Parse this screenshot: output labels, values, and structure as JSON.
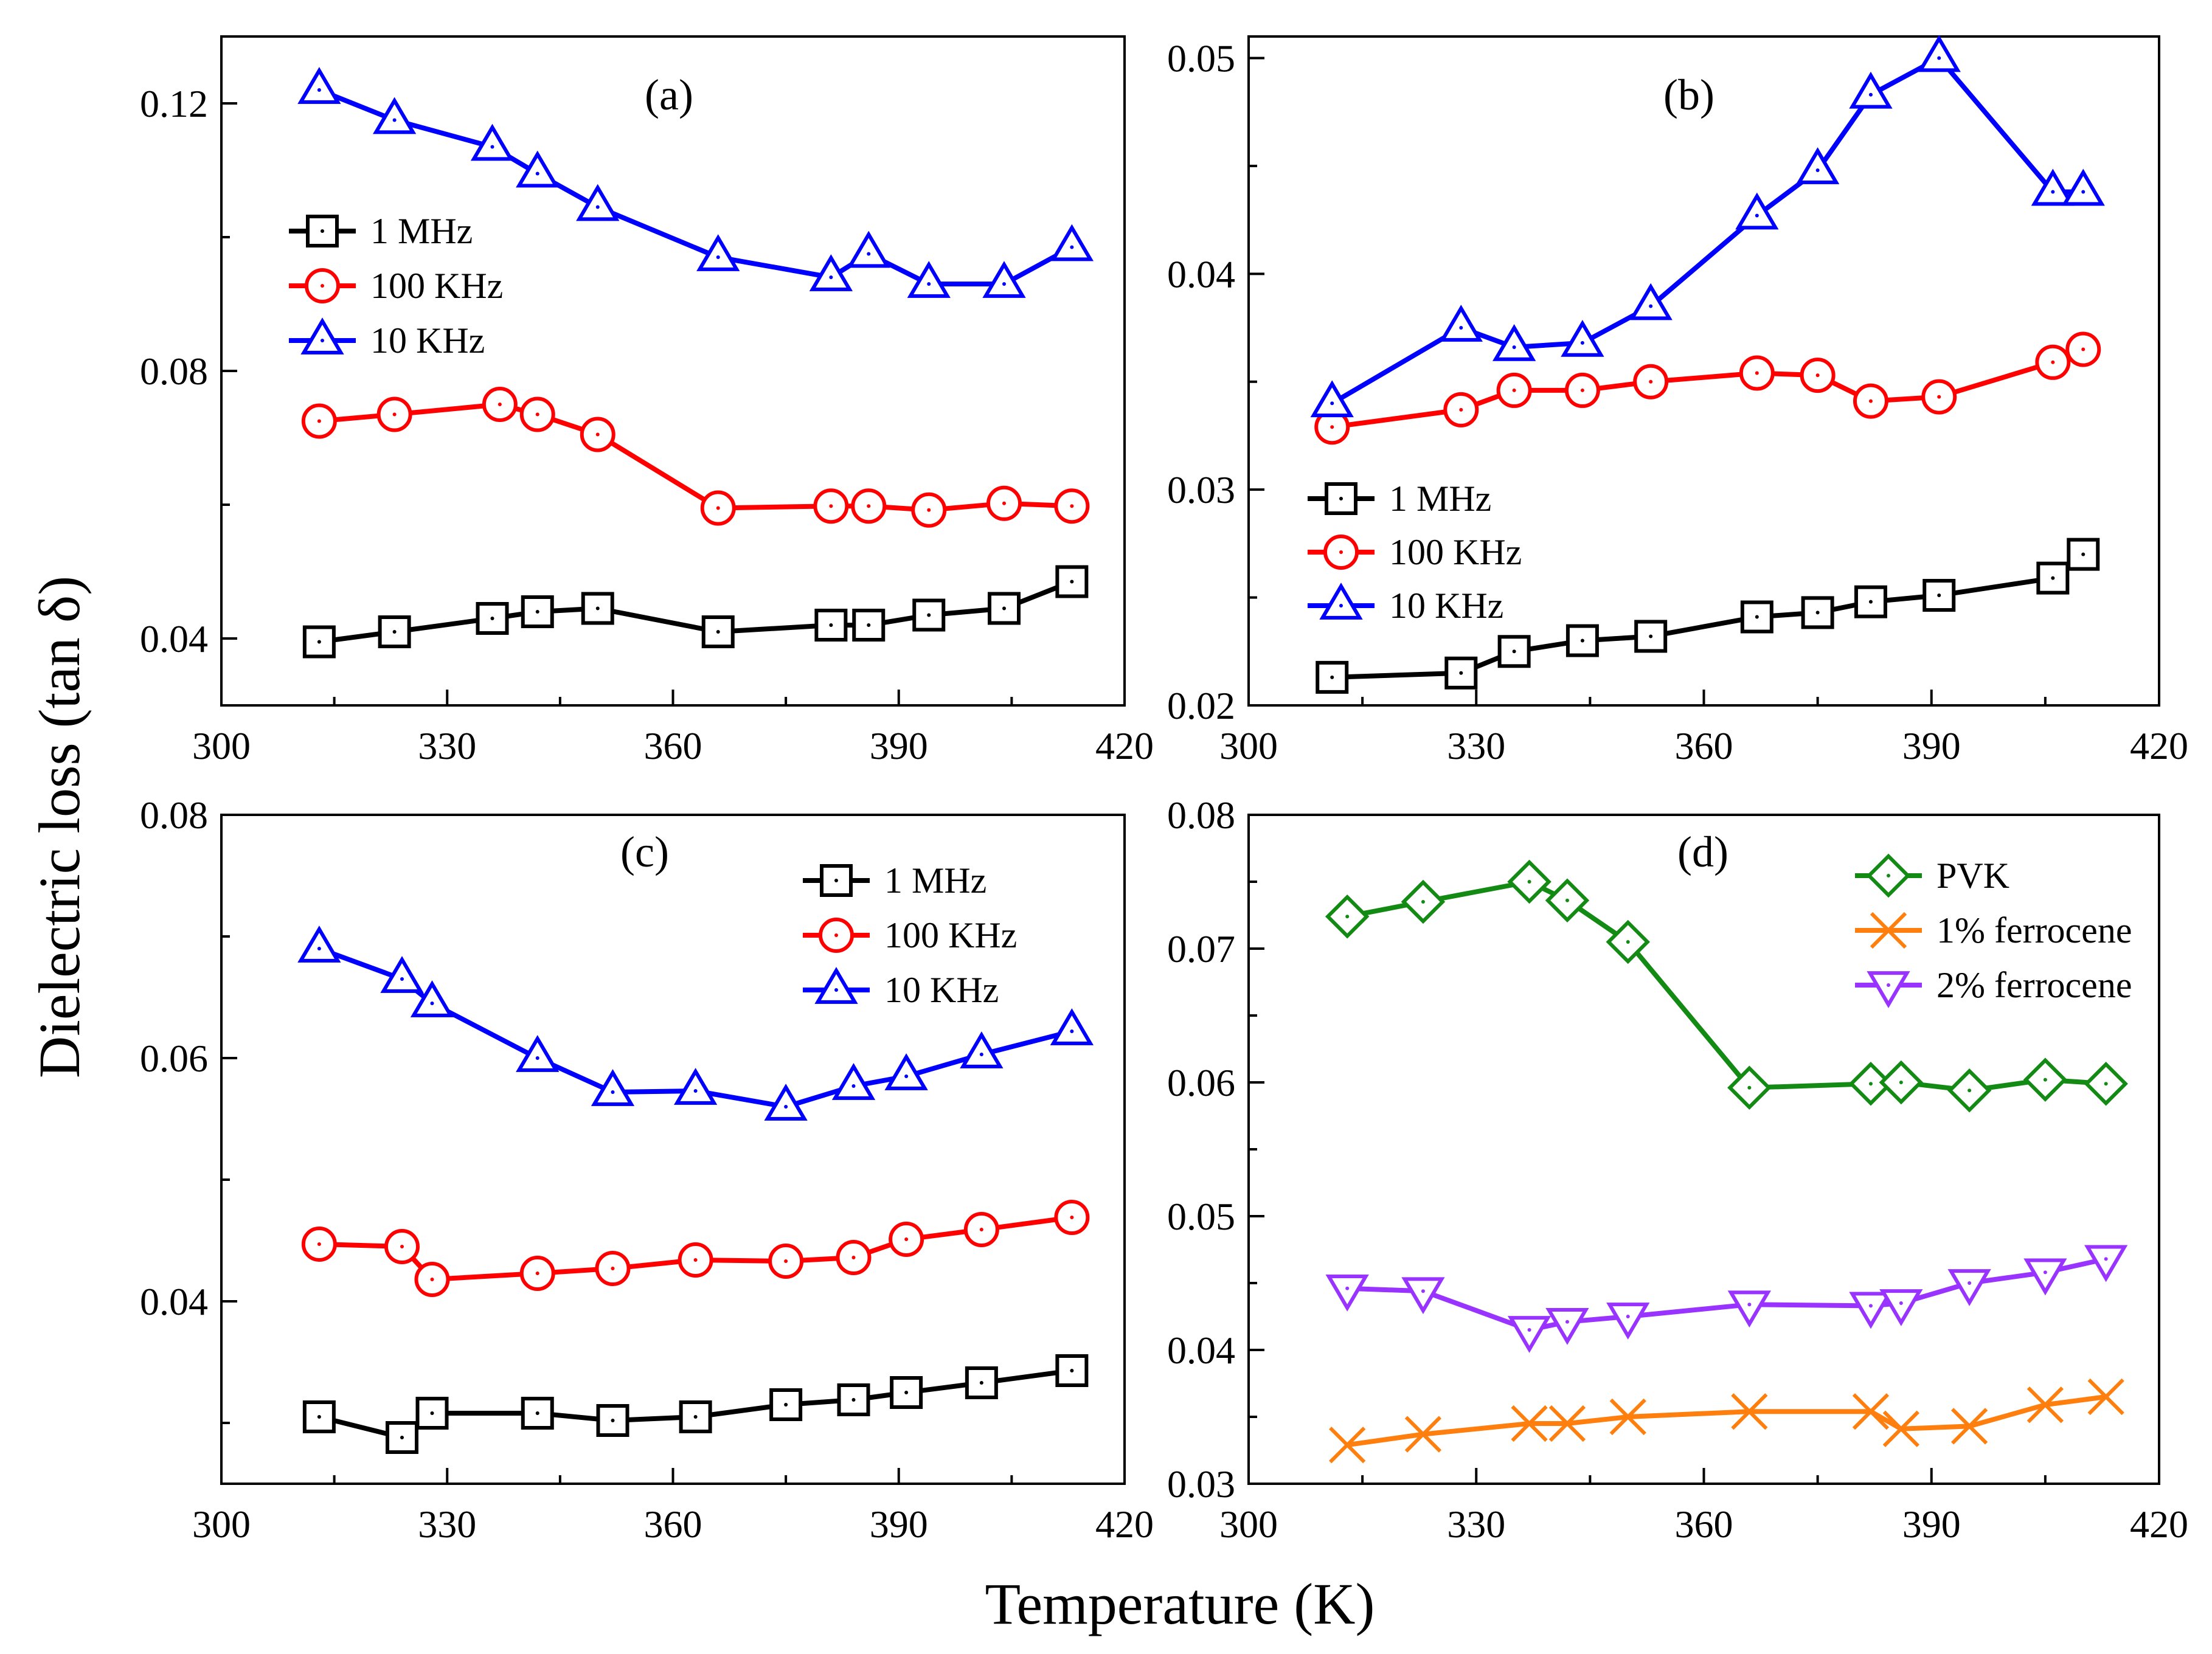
{
  "figure": {
    "xlabel": "Temperature (K)",
    "ylabel": "Dielectric loss (tan δ)"
  },
  "chart_data": [
    {
      "type": "line",
      "panel": "(a)",
      "xlim": [
        300,
        420
      ],
      "ylim": [
        0.03,
        0.13
      ],
      "xticks": [
        300,
        330,
        360,
        390,
        420
      ],
      "yticks": [
        0.04,
        0.08,
        0.12
      ],
      "ytick_labels": [
        "0.04",
        "0.08",
        "0.12"
      ],
      "legend_position": "upper-left",
      "series": [
        {
          "name": "1 MHz",
          "color": "#000000",
          "marker": "square",
          "x": [
            313,
            323,
            336,
            342,
            350,
            366,
            381,
            386,
            394,
            404,
            413
          ],
          "y": [
            0.0395,
            0.041,
            0.043,
            0.044,
            0.0445,
            0.041,
            0.042,
            0.042,
            0.0435,
            0.0445,
            0.0485
          ]
        },
        {
          "name": "100 KHz",
          "color": "#ff0000",
          "marker": "circle",
          "x": [
            313,
            323,
            337,
            342,
            350,
            366,
            381,
            386,
            394,
            404,
            413
          ],
          "y": [
            0.0725,
            0.0735,
            0.075,
            0.0735,
            0.0705,
            0.0595,
            0.0598,
            0.0598,
            0.0592,
            0.0602,
            0.0598
          ]
        },
        {
          "name": "10 KHz",
          "color": "#0000ff",
          "marker": "triangle-up",
          "x": [
            313,
            323,
            336,
            342,
            350,
            366,
            381,
            386,
            394,
            404,
            413
          ],
          "y": [
            0.122,
            0.1175,
            0.1135,
            0.1095,
            0.1045,
            0.097,
            0.094,
            0.0975,
            0.093,
            0.093,
            0.0985
          ]
        }
      ]
    },
    {
      "type": "line",
      "panel": "(b)",
      "xlim": [
        300,
        420
      ],
      "ylim": [
        0.02,
        0.051
      ],
      "xticks": [
        300,
        330,
        360,
        390,
        420
      ],
      "yticks": [
        0.02,
        0.03,
        0.04,
        0.05
      ],
      "ytick_labels": [
        "0.02",
        "0.03",
        "0.04",
        "0.05"
      ],
      "legend_position": "lower-left",
      "series": [
        {
          "name": "1 MHz",
          "color": "#000000",
          "marker": "square",
          "x": [
            311,
            328,
            335,
            344,
            353,
            367,
            375,
            382,
            391,
            406,
            410
          ],
          "y": [
            0.0213,
            0.0215,
            0.0225,
            0.023,
            0.0232,
            0.0241,
            0.0243,
            0.0248,
            0.0251,
            0.0259,
            0.027
          ]
        },
        {
          "name": "100 KHz",
          "color": "#ff0000",
          "marker": "circle",
          "x": [
            311,
            328,
            335,
            344,
            353,
            367,
            375,
            382,
            391,
            406,
            410
          ],
          "y": [
            0.0329,
            0.0337,
            0.0346,
            0.0346,
            0.035,
            0.0354,
            0.0353,
            0.0341,
            0.0343,
            0.0359,
            0.0365
          ]
        },
        {
          "name": "10 KHz",
          "color": "#0000ff",
          "marker": "triangle-up",
          "x": [
            311,
            328,
            335,
            344,
            353,
            367,
            375,
            382,
            391,
            406,
            410
          ],
          "y": [
            0.034,
            0.0375,
            0.0366,
            0.0368,
            0.0385,
            0.0427,
            0.0448,
            0.0483,
            0.05,
            0.0438,
            0.0438
          ]
        }
      ]
    },
    {
      "type": "line",
      "panel": "(c)",
      "xlim": [
        300,
        420
      ],
      "ylim": [
        0.025,
        0.08
      ],
      "xticks": [
        300,
        330,
        360,
        390,
        420
      ],
      "yticks": [
        0.04,
        0.06,
        0.08
      ],
      "ytick_labels": [
        "0.04",
        "0.06",
        "0.08"
      ],
      "legend_position": "top-right",
      "series": [
        {
          "name": "1 MHz",
          "color": "#000000",
          "marker": "square",
          "x": [
            313,
            324,
            328,
            342,
            352,
            363,
            375,
            384,
            391,
            401,
            413
          ],
          "y": [
            0.0305,
            0.0288,
            0.0308,
            0.0308,
            0.0302,
            0.0305,
            0.0315,
            0.0319,
            0.0325,
            0.0333,
            0.0343
          ]
        },
        {
          "name": "100 KHz",
          "color": "#ff0000",
          "marker": "circle",
          "x": [
            313,
            324,
            328,
            342,
            352,
            363,
            375,
            384,
            391,
            401,
            413
          ],
          "y": [
            0.0447,
            0.0445,
            0.0418,
            0.0423,
            0.0427,
            0.0434,
            0.0433,
            0.0436,
            0.0451,
            0.0459,
            0.0469
          ]
        },
        {
          "name": "10 KHz",
          "color": "#0000ff",
          "marker": "triangle-up",
          "x": [
            313,
            324,
            328,
            342,
            352,
            363,
            375,
            384,
            391,
            401,
            413
          ],
          "y": [
            0.069,
            0.0665,
            0.0645,
            0.06,
            0.0572,
            0.0573,
            0.056,
            0.0577,
            0.0585,
            0.0603,
            0.0622
          ]
        }
      ]
    },
    {
      "type": "line",
      "panel": "(d)",
      "xlim": [
        300,
        420
      ],
      "ylim": [
        0.03,
        0.08
      ],
      "xticks": [
        300,
        330,
        360,
        390,
        420
      ],
      "yticks": [
        0.03,
        0.04,
        0.05,
        0.06,
        0.07,
        0.08
      ],
      "ytick_labels": [
        "0.03",
        "0.04",
        "0.05",
        "0.06",
        "0.07",
        "0.08"
      ],
      "legend_position": "top-right",
      "series": [
        {
          "name": "PVK",
          "color": "#138a13",
          "marker": "diamond",
          "x": [
            313,
            323,
            337,
            342,
            350,
            366,
            382,
            386,
            395,
            405,
            413
          ],
          "y": [
            0.0724,
            0.0735,
            0.075,
            0.0736,
            0.0705,
            0.0596,
            0.0599,
            0.06,
            0.0594,
            0.0602,
            0.0599
          ]
        },
        {
          "name": "1% ferrocene",
          "color": "#ff7f0e",
          "marker": "x",
          "x": [
            313,
            323,
            337,
            342,
            350,
            366,
            382,
            386,
            395,
            405,
            413
          ],
          "y": [
            0.0329,
            0.0337,
            0.0345,
            0.0345,
            0.035,
            0.0354,
            0.0354,
            0.0341,
            0.0343,
            0.0359,
            0.0365
          ]
        },
        {
          "name": "2% ferrocene",
          "color": "#9933ff",
          "marker": "triangle-down",
          "x": [
            313,
            323,
            337,
            342,
            350,
            366,
            382,
            386,
            395,
            405,
            413
          ],
          "y": [
            0.0446,
            0.0444,
            0.0415,
            0.0421,
            0.0425,
            0.0434,
            0.0433,
            0.0435,
            0.045,
            0.0458,
            0.0468
          ]
        }
      ]
    }
  ]
}
